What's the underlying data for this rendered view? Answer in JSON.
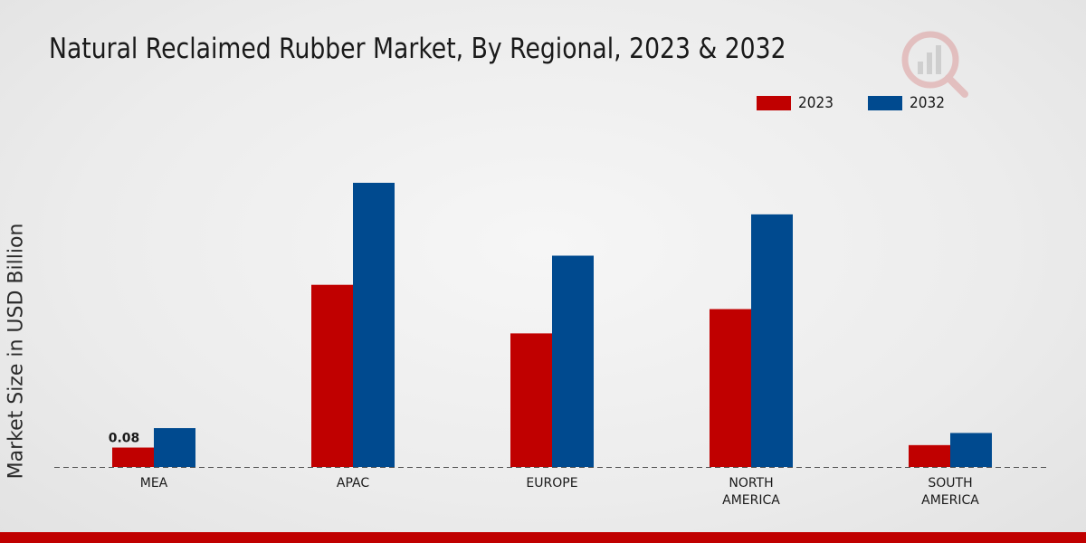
{
  "colors": {
    "series_2023": "#c00000",
    "series_2032": "#004a8f",
    "accent_bar": "#c00000"
  },
  "chart_data": {
    "type": "bar",
    "title": "Natural Reclaimed Rubber Market, By Regional, 2023 & 2032",
    "ylabel": "Market Size in USD Billion",
    "xlabel": "",
    "categories": [
      "MEA",
      "APAC",
      "EUROPE",
      "NORTH AMERICA",
      "SOUTH AMERICA"
    ],
    "category_lines": [
      [
        "MEA"
      ],
      [
        "APAC"
      ],
      [
        "EUROPE"
      ],
      [
        "NORTH",
        "AMERICA"
      ],
      [
        "SOUTH",
        "AMERICA"
      ]
    ],
    "series": [
      {
        "name": "2023",
        "values": [
          0.08,
          0.75,
          0.55,
          0.65,
          0.09
        ]
      },
      {
        "name": "2032",
        "values": [
          0.16,
          1.17,
          0.87,
          1.04,
          0.14
        ]
      }
    ],
    "data_labels": [
      {
        "series": 0,
        "index": 0,
        "text": "0.08"
      }
    ],
    "ylim": [
      0,
      1.55
    ],
    "legend_position": "top-right",
    "grid": false
  }
}
